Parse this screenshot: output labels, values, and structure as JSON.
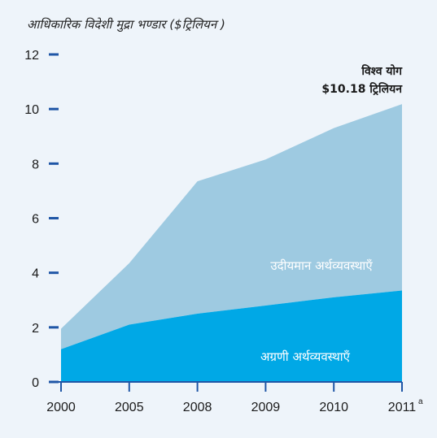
{
  "chart_data": {
    "type": "area",
    "title": "आधिकारिक विदेशी मुद्रा भण्डार ($ट्रिलियन )",
    "categories": [
      "2000",
      "2005",
      "2008",
      "2009",
      "2010",
      "2011"
    ],
    "x_superscripts": [
      "",
      "",
      "",
      "",
      "",
      "a"
    ],
    "stacked": true,
    "series": [
      {
        "name": "अग्रणी अर्थव्यवस्थाएँ",
        "values": [
          1.2,
          2.1,
          2.5,
          2.8,
          3.1,
          3.35
        ],
        "color": "#00a8e6"
      },
      {
        "name": "उदीयमान अर्थव्यवस्थाएँ",
        "values": [
          0.75,
          2.25,
          4.85,
          5.35,
          6.2,
          6.83
        ],
        "color": "#9ecae1"
      }
    ],
    "ylim": [
      0,
      12
    ],
    "yticks": [
      "0",
      "2",
      "4",
      "6",
      "8",
      "10",
      "12"
    ],
    "annotation": {
      "line1": "विश्व योग",
      "line2": "$10.18 ट्रिलियन"
    }
  },
  "colors": {
    "axis": "#1f56a6",
    "background": "#eef4fa"
  }
}
